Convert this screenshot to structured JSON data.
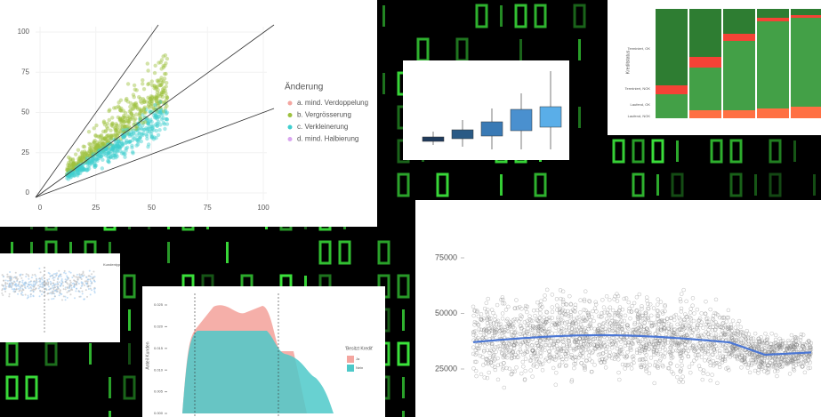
{
  "scatter_panel": {
    "x_ticks": [
      0,
      25,
      50,
      75,
      100
    ],
    "y_ticks": [
      0,
      25,
      50,
      75,
      100
    ],
    "legend_title": "Änderung",
    "legend_items": [
      {
        "label": "a. mind. Verdoppelung",
        "color": "#f4a6a0"
      },
      {
        "label": "b. Vergrösserung",
        "color": "#9dc13f"
      },
      {
        "label": "c. Verkleinerung",
        "color": "#3fcfcf"
      },
      {
        "label": "d. mind. Halbierung",
        "color": "#d9a6f0"
      }
    ]
  },
  "stacked_panel": {
    "y_label": "Kreditstatus",
    "categories": [
      "Terminiert, OK",
      "Terminiert, NOK",
      "Laufend, OK",
      "Laufend, NOK"
    ]
  },
  "strip_panel": {
    "legend_title": "Kundentyp"
  },
  "density_panel": {
    "y_label": "Anteil Kunden",
    "y_ticks": [
      {
        "value": 0,
        "label": "0.000"
      },
      {
        "value": 0.005,
        "label": "0.005"
      },
      {
        "value": 0.01,
        "label": "0.010"
      },
      {
        "value": 0.015,
        "label": "0.015"
      },
      {
        "value": 0.02,
        "label": "0.020"
      },
      {
        "value": 0.025,
        "label": "0.025"
      }
    ],
    "legend_title": "'Besitzt Kredit'",
    "legend_items": [
      {
        "label": "Ja",
        "color": "#f4a6a0"
      },
      {
        "label": "Nein",
        "color": "#4ec9c9"
      }
    ]
  },
  "loess_panel": {
    "y_ticks": [
      25000,
      50000,
      75000
    ],
    "line_color": "#4a76d4"
  }
}
